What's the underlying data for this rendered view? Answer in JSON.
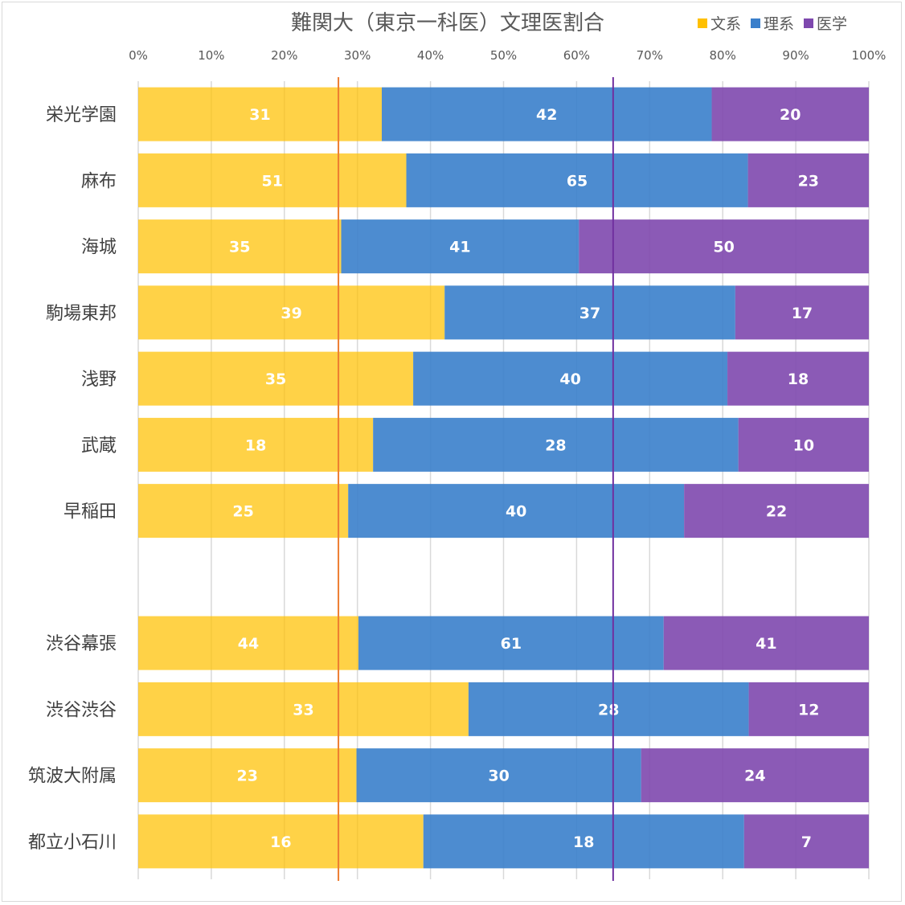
{
  "chart_data": {
    "type": "bar",
    "orientation": "horizontal",
    "stacking": "percent",
    "title": "難関大（東京一科医）文理医割合",
    "categories": [
      "栄光学園",
      "麻布",
      "海城",
      "駒場東邦",
      "浅野",
      "武蔵",
      "早稲田",
      "",
      "渋谷幕張",
      "渋谷渋谷",
      "筑波大附属",
      "都立小石川"
    ],
    "series": [
      {
        "name": "文系",
        "color": "#FFC000",
        "values": [
          31,
          51,
          35,
          39,
          35,
          18,
          25,
          null,
          44,
          33,
          23,
          16
        ]
      },
      {
        "name": "理系",
        "color": "#3A7FCB",
        "values": [
          42,
          65,
          41,
          37,
          40,
          28,
          40,
          null,
          61,
          28,
          30,
          18
        ]
      },
      {
        "name": "医学",
        "color": "#7E48AE",
        "values": [
          20,
          23,
          50,
          17,
          18,
          10,
          22,
          null,
          41,
          12,
          24,
          7
        ]
      }
    ],
    "xlim": [
      0,
      100
    ],
    "xticks": [
      "0%",
      "10%",
      "20%",
      "30%",
      "40%",
      "50%",
      "60%",
      "70%",
      "80%",
      "90%",
      "100%"
    ],
    "grid": true,
    "legend_position": "top-right",
    "reference_lines": [
      {
        "value_percent": 27.4,
        "color": "#ED7D31"
      },
      {
        "value_percent": 65,
        "color": "#7030A0"
      }
    ]
  }
}
